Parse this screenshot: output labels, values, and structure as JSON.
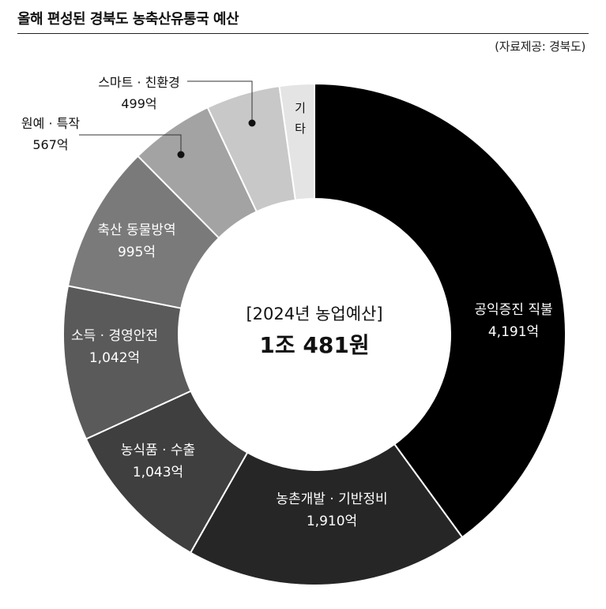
{
  "header": {
    "title": "올해 편성된 경북도 농축산유통국 예산",
    "source": "(자료제공: 경북도)"
  },
  "center": {
    "label": "[2024년 농업예산]",
    "total": "1조 481원"
  },
  "chart_data": {
    "type": "pie",
    "style": "donut",
    "unit": "억",
    "categories": [
      "공익증진 직불",
      "농촌개발 · 기반정비",
      "농식품 · 수출",
      "소득 · 경영안전",
      "축산 동물방역",
      "원예 · 특작",
      "스마트 · 친환경",
      "기타"
    ],
    "values": [
      4191,
      1910,
      1043,
      1042,
      995,
      567,
      499,
      234
    ],
    "value_labels": [
      "4,191억",
      "1,910억",
      "1,043억",
      "1,042억",
      "995억",
      "567억",
      "499억",
      ""
    ],
    "colors": [
      "#000000",
      "#262626",
      "#3f3f3f",
      "#5a5a5a",
      "#7a7a7a",
      "#a3a3a3",
      "#c8c8c8",
      "#e4e4e4"
    ],
    "label_colors": [
      "#ffffff",
      "#ffffff",
      "#ffffff",
      "#ffffff",
      "#ffffff",
      "#111111",
      "#111111",
      "#111111"
    ],
    "label_placement": [
      "inside",
      "inside",
      "inside",
      "inside",
      "inside",
      "callout",
      "callout",
      "inside-vertical"
    ],
    "start": "top, clockwise"
  }
}
